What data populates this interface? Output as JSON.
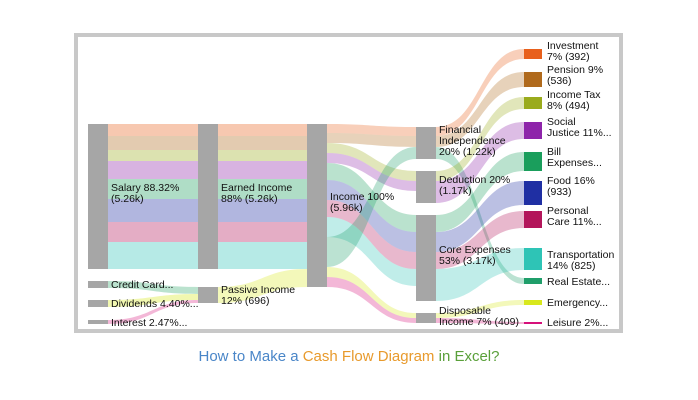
{
  "caption": {
    "part1": "How to Make a ",
    "part2": "Cash Flow Diagram",
    "part3": " in Excel?",
    "color1": "#4a86c8",
    "color2": "#e89a2c",
    "color3": "#5aa03a"
  },
  "diagram": {
    "node_color": "#a6a6a6",
    "nodes": [
      {
        "id": "salary",
        "lines": [
          "Salary 88.32%",
          "(5.26k)"
        ]
      },
      {
        "id": "credit",
        "lines": [
          "Credit Card..."
        ]
      },
      {
        "id": "dividends",
        "lines": [
          "Dividends 4.40%..."
        ]
      },
      {
        "id": "interest",
        "lines": [
          "Interest 2.47%..."
        ]
      },
      {
        "id": "earned",
        "lines": [
          "Earned Income",
          "88% (5.26k)"
        ]
      },
      {
        "id": "passive",
        "lines": [
          "Passive Income",
          "12% (696)"
        ]
      },
      {
        "id": "income",
        "lines": [
          "Income 100%",
          "(5.96k)"
        ]
      },
      {
        "id": "financial",
        "lines": [
          "Financial",
          "Independence",
          "20% (1.22k)"
        ]
      },
      {
        "id": "deduction",
        "lines": [
          "Deduction 20%",
          "(1.17k)"
        ]
      },
      {
        "id": "core",
        "lines": [
          "Core Expenses",
          "53% (3.17k)"
        ]
      },
      {
        "id": "disposable",
        "lines": [
          "Disposable",
          "Income 7% (409)"
        ]
      }
    ],
    "outputs": [
      {
        "id": "investment",
        "lines": [
          "Investment",
          "7% (392)"
        ],
        "color": "#e8601c"
      },
      {
        "id": "pension",
        "lines": [
          "Pension 9%",
          "(536)"
        ],
        "color": "#b06a1c"
      },
      {
        "id": "incometax",
        "lines": [
          "Income Tax",
          "8% (494)"
        ],
        "color": "#9aab1c"
      },
      {
        "id": "social",
        "lines": [
          "Social",
          "Justice 11%..."
        ],
        "color": "#8e24aa"
      },
      {
        "id": "bill",
        "lines": [
          "Bill",
          "Expenses..."
        ],
        "color": "#1a9e5c"
      },
      {
        "id": "food",
        "lines": [
          "Food 16%",
          "(933)"
        ],
        "color": "#1f2fa3"
      },
      {
        "id": "personal",
        "lines": [
          "Personal",
          "Care 11%..."
        ],
        "color": "#b3155a"
      },
      {
        "id": "transport",
        "lines": [
          "Transportation",
          "14% (825)"
        ],
        "color": "#2ec4b6"
      },
      {
        "id": "realestate",
        "lines": [
          "Real Estate..."
        ],
        "color": "#1f9e6a"
      },
      {
        "id": "emergency",
        "lines": [
          "Emergency..."
        ],
        "color": "#d8e81c"
      },
      {
        "id": "leisure",
        "lines": [
          "Leisure 2%..."
        ],
        "color": "#d6107a"
      }
    ]
  }
}
